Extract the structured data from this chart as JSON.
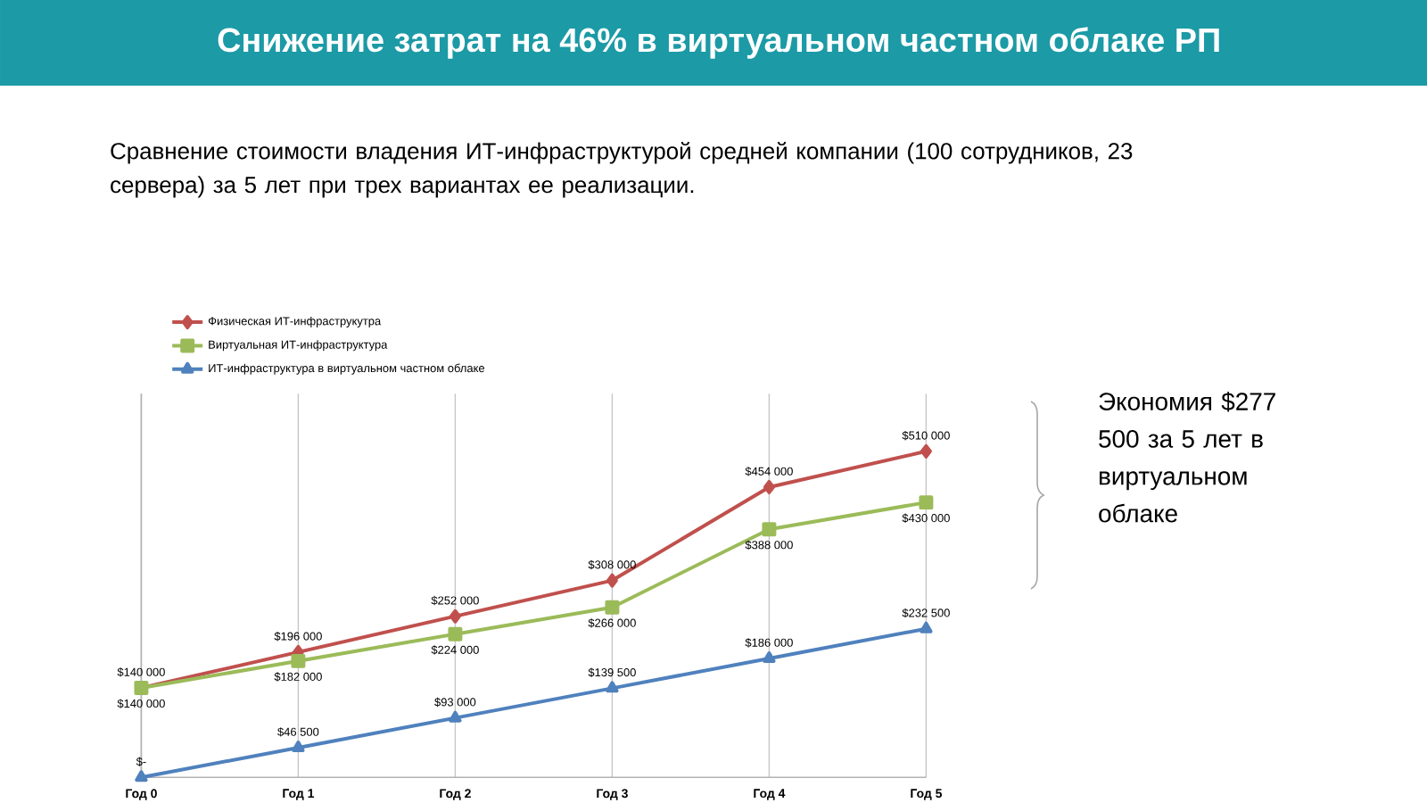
{
  "chart_data": {
    "type": "line",
    "title": "Снижение затрат на 46% в виртуальном частном облаке РП",
    "subtitle": "Сравнение стоимости владения ИТ-инфраструктурой средней компании (100 сотрудников, 23 сервера) за 5 лет при трех вариантах ее реализации.",
    "categories": [
      "Год 0",
      "Год 1",
      "Год 2",
      "Год 3",
      "Год 4",
      "Год 5"
    ],
    "series": [
      {
        "name": "Физическая ИТ-инфраструкутра",
        "color": "#c0504d",
        "marker": "diamond",
        "values": [
          140000,
          196000,
          252000,
          308000,
          454000,
          510000
        ],
        "value_labels": [
          "$140 000",
          "$196 000",
          "$252 000",
          "$308 000",
          "$454 000",
          "$510 000"
        ]
      },
      {
        "name": "Виртуальная ИТ-инфраструктура",
        "color": "#9bbb59",
        "marker": "square",
        "values": [
          140000,
          182000,
          224000,
          266000,
          388000,
          430000
        ],
        "value_labels": [
          "$140 000",
          "$182 000",
          "$224 000",
          "$266 000",
          "$388 000",
          "$430 000"
        ]
      },
      {
        "name": "ИТ-инфраструктура в виртуальном частном облаке",
        "color": "#4f81bd",
        "marker": "triangle",
        "values": [
          0,
          46500,
          93000,
          139500,
          186000,
          232500
        ],
        "value_labels": [
          "$-",
          "$46 500",
          "$93 000",
          "$139 500",
          "$186 000",
          "$232 500"
        ]
      }
    ],
    "ylim": [
      0,
      600000
    ],
    "grid": "x",
    "legend": "top left",
    "tick_labels": "x",
    "line_style": "solid",
    "annotations": [
      "Экономия $277 500 за 5 лет в виртуальном облаке"
    ]
  }
}
